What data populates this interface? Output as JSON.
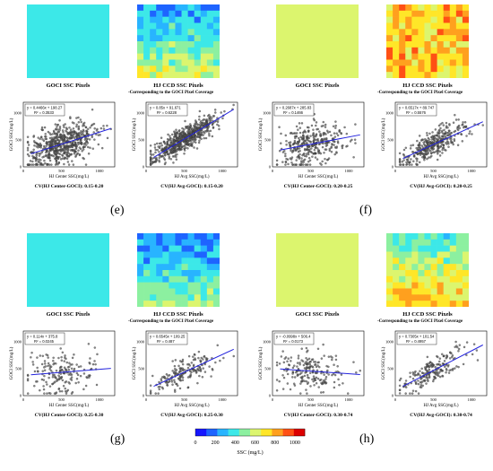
{
  "figure": {
    "colormap": [
      "#1414ff",
      "#1e64ff",
      "#28b4ff",
      "#3ce8e8",
      "#8cf0a0",
      "#dcf56e",
      "#ffe628",
      "#ffa01e",
      "#ff5014",
      "#dc0000"
    ],
    "colorbar": {
      "label": "SSC (mg/L)",
      "ticks": [
        "0",
        "200",
        "400",
        "600",
        "800",
        "1000"
      ]
    },
    "panels": [
      {
        "label": "(e)",
        "goci_title": "GOCI SSC Pixels",
        "hj_title": "HJ CCD SSC Pixels",
        "hj_subtitle": "-Corresponding to the GOCI Pixel Coverage",
        "goci_ssc": 420,
        "hj_base": 430,
        "hj_variation": 250,
        "hj_trend": "bottom-high",
        "scatter_left": {
          "equation": "y = 0.4466x + 198.27",
          "r2": "R² = 0.3533",
          "n_points": 600,
          "spread": 180,
          "slope": 0.4466,
          "intercept": 198.27,
          "xlabel": "HJ Center SSC(mg/L)",
          "ylabel": "GOCI SSC(mg/L)"
        },
        "scatter_right": {
          "equation": "y = 0.85x + 91.671",
          "r2": "R² = 0.6228",
          "n_points": 600,
          "spread": 110,
          "slope": 0.85,
          "intercept": 91.671,
          "xlabel": "HJ Avg SSC(mg/L)",
          "ylabel": "GOCI SSC(mg/L)"
        },
        "cv_left": "CV(HJ Center-GOCI): 0.15-0.20",
        "cv_right": "CV(HJ Avg-GOCI): 0.15-0.20"
      },
      {
        "label": "(f)",
        "goci_title": "GOCI SSC Pixels",
        "hj_title": "HJ CCD SSC Pixels",
        "hj_subtitle": "-Corresponding to the GOCI Pixel Coverage",
        "goci_ssc": 640,
        "hj_base": 760,
        "hj_variation": 300,
        "hj_trend": "random",
        "scatter_left": {
          "equation": "y = 0.2687x + 285.83",
          "r2": "R² = 0.1466",
          "n_points": 350,
          "spread": 190,
          "slope": 0.2687,
          "intercept": 285.83,
          "xlabel": "HJ Center SSC(mg/L)",
          "ylabel": "GOCI SSC(mg/L)"
        },
        "scatter_right": {
          "equation": "y = 0.6517x + 89.747",
          "r2": "R² = 0.5576",
          "n_points": 350,
          "spread": 110,
          "slope": 0.6517,
          "intercept": 89.747,
          "xlabel": "HJ Avg SSC(mg/L)",
          "ylabel": "GOCI SSC(mg/L)"
        },
        "cv_left": "CV(HJ Center-GOCI): 0.20-0.25",
        "cv_right": "CV(HJ Avg-GOCI): 0.20-0.25"
      },
      {
        "label": "(g)",
        "goci_title": "GOCI SSC Pixels",
        "hj_title": "HJ CCD SSC Pixels",
        "hj_subtitle": "-Corresponding to the GOCI Pixel Coverage",
        "goci_ssc": 430,
        "hj_base": 370,
        "hj_variation": 230,
        "hj_trend": "bottom-high",
        "scatter_left": {
          "equation": "y = 0.114x + 375.8",
          "r2": "R² = 0.0245",
          "n_points": 180,
          "spread": 200,
          "slope": 0.114,
          "intercept": 375.8,
          "xlabel": "HJ Center SSC(mg/L)",
          "ylabel": "GOCI SSC(mg/L)"
        },
        "scatter_right": {
          "equation": "y = 0.6545x + 109.25",
          "r2": "R² = 0.487",
          "n_points": 180,
          "spread": 130,
          "slope": 0.6545,
          "intercept": 109.25,
          "xlabel": "HJ Avg SSC(mg/L)",
          "ylabel": "GOCI SSC(mg/L)"
        },
        "cv_left": "CV(HJ Center-GOCI): 0.25-0.30",
        "cv_right": "CV(HJ Avg-GOCI): 0.25-0.30"
      },
      {
        "label": "(h)",
        "goci_title": "GOCI SSC Pixels",
        "hj_title": "HJ CCD SSC Pixels",
        "hj_subtitle": "-Corresponding to the GOCI Pixel Coverage",
        "goci_ssc": 560,
        "hj_base": 600,
        "hj_variation": 260,
        "hj_trend": "bottom-high",
        "scatter_left": {
          "equation": "y = -0.0998x + 506.4",
          "r2": "R² = 0.0173",
          "n_points": 200,
          "spread": 180,
          "slope": -0.0998,
          "intercept": 506.4,
          "xlabel": "HJ Center SSC(mg/L)",
          "ylabel": "GOCI SSC(mg/L)"
        },
        "scatter_right": {
          "equation": "y = 0.7305x + 101.54",
          "r2": "R² = 0.4957",
          "n_points": 200,
          "spread": 120,
          "slope": 0.7305,
          "intercept": 101.54,
          "xlabel": "HJ Avg SSC(mg/L)",
          "ylabel": "GOCI SSC(mg/L)"
        },
        "cv_left": "CV(HJ Center-GOCI): 0.30-0.74",
        "cv_right": "CV(HJ Avg-GOCI): 0.30-0.74"
      }
    ],
    "scatter_axes": {
      "xticks": [
        "0",
        "500",
        "1000"
      ],
      "yticks": [
        "0",
        "500",
        "1000"
      ],
      "range": [
        0,
        1200
      ]
    }
  }
}
